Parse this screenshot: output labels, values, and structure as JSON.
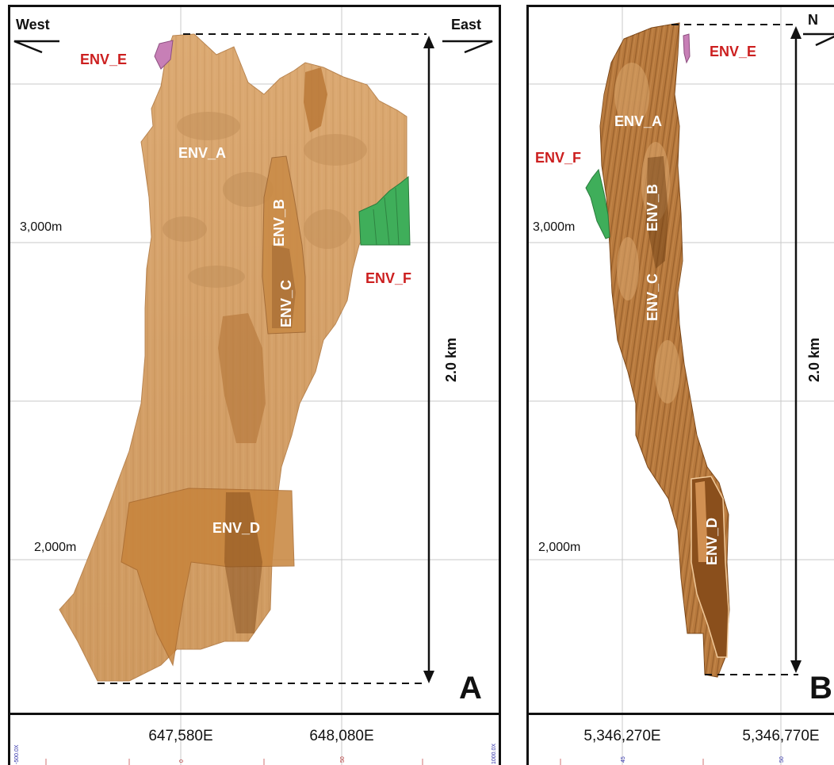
{
  "panel_a": {
    "letter": "A",
    "west_label": "West",
    "east_label": "East",
    "scale_label": "2.0 km",
    "elevation_labels": [
      "3,000m",
      "2,000m"
    ],
    "envelopes": {
      "env_a": "ENV_A",
      "env_b": "ENV_B",
      "env_c": "ENV_C",
      "env_d": "ENV_D",
      "env_e": "ENV_E",
      "env_f": "ENV_F"
    },
    "eastings": [
      "647,580E",
      "648,080E"
    ],
    "tiny_ticks": [
      "-500.0X",
      "0",
      "50",
      "1000.0X"
    ]
  },
  "panel_b": {
    "letter": "B",
    "north_label": "N",
    "scale_label": "2.0 km",
    "elevation_labels": [
      "3,000m",
      "2,000m"
    ],
    "envelopes": {
      "env_a": "ENV_A",
      "env_b": "ENV_B",
      "env_c": "ENV_C",
      "env_d": "ENV_D",
      "env_e": "ENV_E",
      "env_f": "ENV_F"
    },
    "northings": [
      "5,346,270E",
      "5,346,770E"
    ],
    "tiny_ticks": [
      "45",
      "50"
    ]
  },
  "colors": {
    "orebody_light": "#d9a56c",
    "orebody_mid": "#c98a45",
    "orebody_dark": "#8a5220",
    "env_e": "#c77fb6",
    "env_f": "#3fae5a",
    "label_red": "#cc1f1f",
    "grid": "#c8c8c8"
  }
}
